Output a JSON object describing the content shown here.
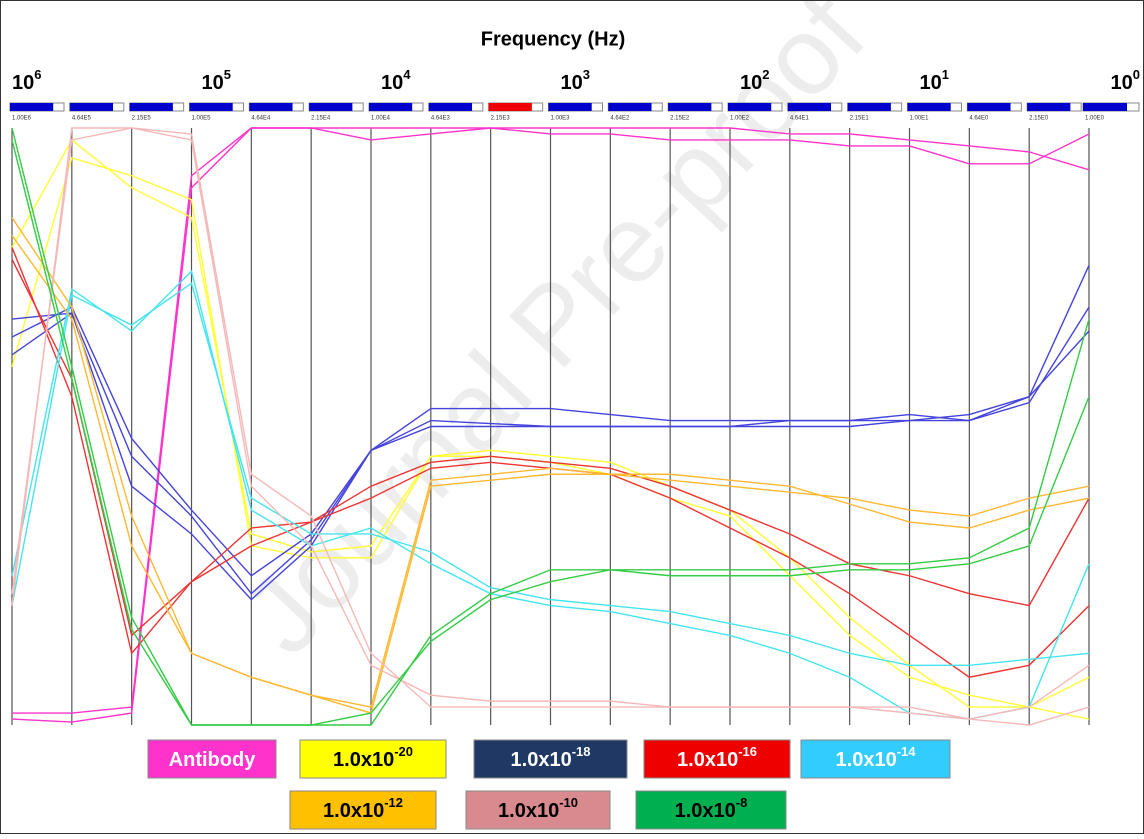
{
  "chart_data": {
    "type": "parallel",
    "title": "Frequency (Hz)",
    "watermark": "Journal Pre-proof",
    "axes": [
      "1.00E6",
      "4.64E5",
      "2.15E5",
      "1.00E5",
      "4.64E4",
      "2.15E4",
      "1.00E4",
      "4.64E3",
      "2.15E3",
      "1.00E3",
      "4.64E2",
      "2.15E2",
      "1.00E2",
      "4.64E1",
      "2.15E1",
      "1.00E1",
      "4.64E0",
      "2.15E0",
      "1.00E0"
    ],
    "decades": [
      {
        "base": "10",
        "exp": "6"
      },
      {
        "base": "10",
        "exp": "5"
      },
      {
        "base": "10",
        "exp": "4"
      },
      {
        "base": "10",
        "exp": "3"
      },
      {
        "base": "10",
        "exp": "2"
      },
      {
        "base": "10",
        "exp": "1"
      },
      {
        "base": "10",
        "exp": "0"
      }
    ],
    "ylim": [
      0,
      100
    ],
    "series": [
      {
        "name": {
          "base": "Antibody"
        },
        "color": "#ff33cc",
        "box": "#ff33cc",
        "text_color": "#ffffff",
        "lines": [
          [
            1,
            0.5,
            2,
            90,
            100,
            100,
            100,
            100,
            100,
            100,
            100,
            100,
            100,
            99,
            99,
            98,
            97,
            96,
            93
          ],
          [
            2,
            2,
            3,
            92,
            100,
            100,
            98,
            99,
            100,
            99,
            99,
            98,
            98,
            98,
            97,
            97,
            94,
            94,
            99
          ]
        ]
      },
      {
        "name": {
          "base": "1.0x10",
          "exp": "-20"
        },
        "color": "#ffff33",
        "box": "#ffff00",
        "text_color": "#000000",
        "lines": [
          [
            60,
            95,
            92,
            88,
            30,
            28,
            28,
            45,
            45,
            44,
            42,
            38,
            35,
            25,
            15,
            8,
            5,
            3,
            1
          ],
          [
            80,
            98,
            90,
            85,
            32,
            29,
            30,
            45,
            46,
            45,
            44,
            40,
            36,
            28,
            18,
            10,
            3,
            3,
            8
          ]
        ]
      },
      {
        "name": {
          "base": "1.0x10",
          "exp": "-18"
        },
        "color": "#4444dd",
        "box": "#1f3864",
        "text_color": "#ffffff",
        "lines": [
          [
            65,
            70,
            48,
            36,
            25,
            32,
            46,
            53,
            53,
            53,
            52,
            51,
            51,
            51,
            51,
            51,
            52,
            55,
            66
          ],
          [
            62,
            69,
            40,
            32,
            21,
            30,
            46,
            50,
            50,
            50,
            50,
            50,
            50,
            51,
            51,
            52,
            51,
            54,
            70
          ],
          [
            68,
            69,
            45,
            35,
            22,
            31,
            46,
            51,
            50.5,
            50,
            50,
            50,
            50,
            50,
            50,
            51,
            51,
            55,
            77
          ]
        ]
      },
      {
        "name": {
          "base": "1.0x10",
          "exp": "-16"
        },
        "color": "#ee3333",
        "box": "#ee0000",
        "text_color": "#ffffff",
        "lines": [
          [
            80,
            55,
            12,
            24,
            33,
            34,
            40,
            44,
            45,
            44,
            43,
            40,
            36,
            32,
            27,
            25,
            22,
            20,
            38
          ],
          [
            78,
            58,
            15,
            24,
            30,
            34,
            38,
            43,
            44,
            43,
            42,
            38,
            33,
            28,
            22,
            15,
            8,
            10,
            20
          ]
        ]
      },
      {
        "name": {
          "base": "1.0x10",
          "exp": "-14"
        },
        "color": "#44e5ee",
        "box": "#33ccff",
        "text_color": "#ffffff",
        "lines": [
          [
            25,
            73,
            66,
            76,
            36,
            30,
            33,
            27,
            22,
            20,
            19,
            17,
            15,
            12,
            8,
            2,
            1,
            3,
            27
          ],
          [
            20,
            72,
            67,
            74,
            38,
            32,
            32,
            29,
            23,
            21,
            20,
            19,
            17,
            15,
            12,
            10,
            10,
            11,
            12
          ]
        ]
      },
      {
        "name": {
          "base": "1.0x10",
          "exp": "-12"
        },
        "color": "#ffb833",
        "box": "#ffc000",
        "text_color": "#000000",
        "lines": [
          [
            85,
            70,
            35,
            12,
            8,
            5,
            3,
            41,
            42,
            43,
            42,
            42,
            41,
            40,
            37,
            34,
            33,
            36,
            38
          ],
          [
            82,
            68,
            30,
            12,
            8,
            5,
            2,
            40,
            41,
            42,
            42,
            41,
            40,
            39,
            38,
            36,
            35,
            38,
            40
          ]
        ]
      },
      {
        "name": {
          "base": "1.0x10",
          "exp": "-10"
        },
        "color": "#f5b8b8",
        "box": "#d98a8f",
        "text_color": "#000000",
        "lines": [
          [
            20,
            100,
            100,
            98,
            40,
            30,
            10,
            5,
            4,
            4,
            4,
            3,
            3,
            3,
            3,
            3,
            1,
            0,
            3
          ],
          [
            22,
            98,
            100,
            99,
            42,
            35,
            12,
            3,
            3,
            3,
            3,
            3,
            3,
            3,
            3,
            2,
            1,
            3,
            10
          ]
        ]
      },
      {
        "name": {
          "base": "1.0x10",
          "exp": "-8"
        },
        "color": "#33cc44",
        "box": "#00b050",
        "text_color": "#000000",
        "lines": [
          [
            100,
            60,
            18,
            0,
            0,
            0,
            0,
            15,
            22,
            26,
            26,
            26,
            26,
            26,
            27,
            27,
            28,
            33,
            68
          ],
          [
            98,
            58,
            16,
            0,
            0,
            0,
            2,
            14,
            21,
            24,
            26,
            25,
            25,
            25,
            26,
            26,
            27,
            30,
            55
          ]
        ]
      }
    ]
  }
}
